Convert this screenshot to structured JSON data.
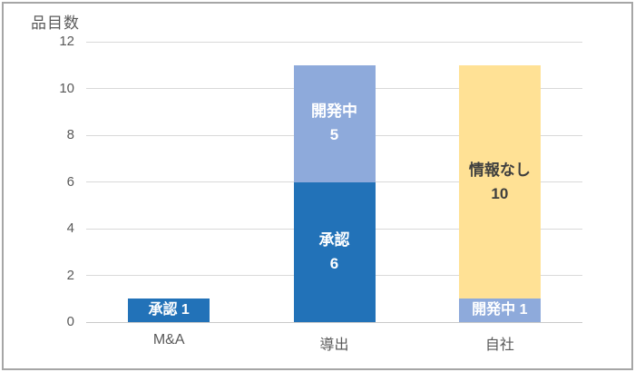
{
  "frame": {
    "border_color": "#a6a6a6",
    "background": "#ffffff"
  },
  "axis": {
    "tick_color": "#595959",
    "grid_color": "#d9d9d9",
    "baseline_color": "#c9c9c9"
  },
  "chart_data": {
    "type": "bar",
    "stacked": true,
    "title": "品目数",
    "categories": [
      "M&A",
      "導出",
      "自社"
    ],
    "ylim": [
      0,
      12
    ],
    "yticks": [
      0,
      2,
      4,
      6,
      8,
      10,
      12
    ],
    "grid": true,
    "legend": "none",
    "series": [
      {
        "id": "approved",
        "name": "承認",
        "color": "#2272b8",
        "label_color": "#ffffff",
        "values": [
          1,
          6,
          0
        ]
      },
      {
        "id": "in-development",
        "name": "開発中",
        "color": "#8eaadb",
        "label_color": "#ffffff",
        "values": [
          0,
          5,
          1
        ]
      },
      {
        "id": "no-info",
        "name": "情報なし",
        "color": "#ffe195",
        "label_color": "#3f3f3f",
        "values": [
          0,
          0,
          10
        ]
      }
    ],
    "totals": [
      1,
      11,
      11
    ]
  }
}
